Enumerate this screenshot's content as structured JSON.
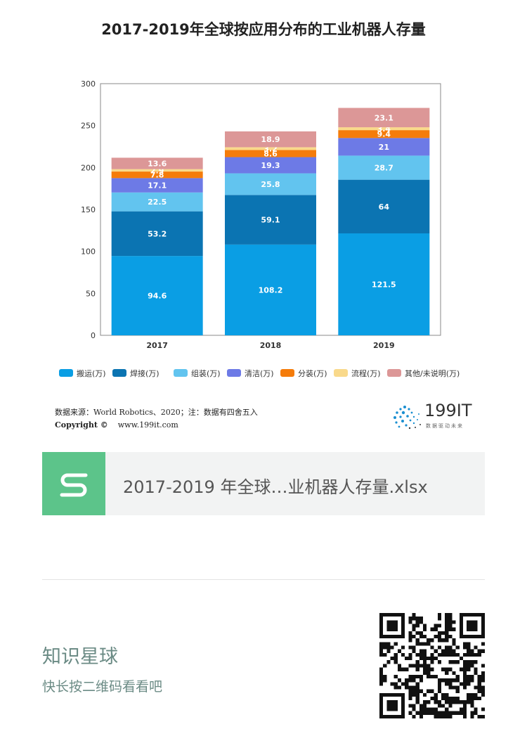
{
  "title": "2017-2019年全球按应用分布的工业机器人存量",
  "chart_data": {
    "type": "bar",
    "stacked": true,
    "categories": [
      "2017",
      "2018",
      "2019"
    ],
    "ylim": [
      0,
      300
    ],
    "yticks": [
      0,
      50,
      100,
      150,
      200,
      250,
      300
    ],
    "legend_position": "bottom",
    "series": [
      {
        "name": "搬运(万)",
        "color": "#0a9ee4",
        "values": [
          94.6,
          108.2,
          121.5
        ]
      },
      {
        "name": "焊接(万)",
        "color": "#0b74b2",
        "values": [
          53.2,
          59.1,
          64
        ]
      },
      {
        "name": "组装(万)",
        "color": "#62c4ef",
        "values": [
          22.5,
          25.8,
          28.7
        ]
      },
      {
        "name": "清洁(万)",
        "color": "#6d7ae6",
        "values": [
          17.1,
          19.3,
          21
        ]
      },
      {
        "name": "分装(万)",
        "color": "#f57c0a",
        "values": [
          7.8,
          8.6,
          9.4
        ]
      },
      {
        "name": "流程(万)",
        "color": "#f9d98b",
        "values": [
          2.9,
          3.2,
          3.4
        ]
      },
      {
        "name": "其他/未说明(万)",
        "color": "#dc9797",
        "values": [
          13.6,
          18.9,
          23.1
        ]
      }
    ]
  },
  "footer": {
    "source": "数据来源：World Robotics、2020；注：数据有四舍五入",
    "copyright_label": "Copyright ©",
    "copyright_url": "www.199it.com",
    "logo_text": "199IT",
    "logo_sub": "数据驱动未来"
  },
  "attachment": {
    "icon_letter": "S",
    "filename": "2017-2019 年全球…业机器人存量.xlsx"
  },
  "planet": {
    "title": "知识星球",
    "subtitle": "快长按二维码看看吧"
  }
}
